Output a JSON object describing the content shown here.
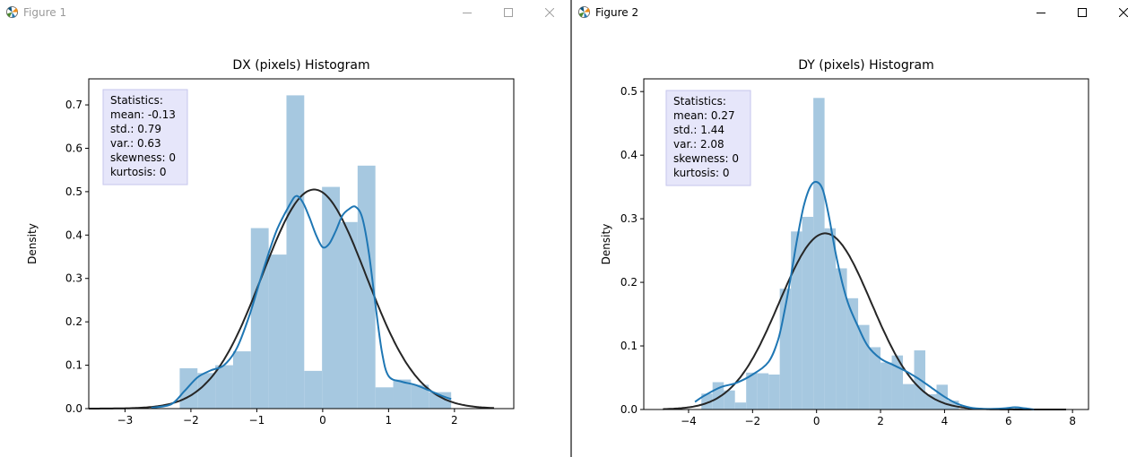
{
  "windows": [
    {
      "title": "Figure 1",
      "active": false,
      "chart_data": {
        "type": "bar",
        "title": "DX (pixels) Histogram",
        "xlabel": "",
        "ylabel": "Density",
        "xlim": [
          -3.55,
          2.9
        ],
        "ylim": [
          0,
          0.76
        ],
        "xticks": [
          -3,
          -2,
          -1,
          0,
          1,
          2
        ],
        "yticks": [
          0.0,
          0.1,
          0.2,
          0.3,
          0.4,
          0.5,
          0.6,
          0.7
        ],
        "ytick_labels": [
          "0.0",
          "0.1",
          "0.2",
          "0.3",
          "0.4",
          "0.5",
          "0.6",
          "0.7"
        ],
        "grid": false,
        "bar_color": "#a6c8e0",
        "kde_color": "#1f77b4",
        "fit_color": "#262626",
        "bins": [
          {
            "x0": -2.17,
            "x1": -1.9,
            "value": 0.093
          },
          {
            "x0": -1.9,
            "x1": -1.63,
            "value": 0.082
          },
          {
            "x0": -1.63,
            "x1": -1.36,
            "value": 0.1
          },
          {
            "x0": -1.36,
            "x1": -1.09,
            "value": 0.132
          },
          {
            "x0": -1.09,
            "x1": -0.82,
            "value": 0.416
          },
          {
            "x0": -0.82,
            "x1": -0.55,
            "value": 0.355
          },
          {
            "x0": -0.55,
            "x1": -0.28,
            "value": 0.722
          },
          {
            "x0": -0.28,
            "x1": -0.01,
            "value": 0.087
          },
          {
            "x0": -0.01,
            "x1": 0.26,
            "value": 0.511
          },
          {
            "x0": 0.26,
            "x1": 0.53,
            "value": 0.43
          },
          {
            "x0": 0.53,
            "x1": 0.8,
            "value": 0.56
          },
          {
            "x0": 0.8,
            "x1": 1.07,
            "value": 0.049
          },
          {
            "x0": 1.07,
            "x1": 1.34,
            "value": 0.067
          },
          {
            "x0": 1.34,
            "x1": 1.61,
            "value": 0.055
          },
          {
            "x0": 1.61,
            "x1": 1.95,
            "value": 0.038
          }
        ],
        "kde": {
          "x": [
            -2.6,
            -2.3,
            -2.1,
            -1.9,
            -1.7,
            -1.5,
            -1.3,
            -1.1,
            -0.9,
            -0.7,
            -0.5,
            -0.4,
            -0.3,
            -0.2,
            -0.1,
            0.0,
            0.1,
            0.2,
            0.3,
            0.4,
            0.5,
            0.6,
            0.7,
            0.8,
            0.9,
            1.0,
            1.2,
            1.4,
            1.6,
            1.8,
            1.95
          ],
          "y": [
            0.002,
            0.01,
            0.04,
            0.072,
            0.088,
            0.1,
            0.14,
            0.22,
            0.32,
            0.41,
            0.47,
            0.49,
            0.475,
            0.44,
            0.4,
            0.372,
            0.38,
            0.41,
            0.445,
            0.46,
            0.465,
            0.44,
            0.36,
            0.24,
            0.13,
            0.075,
            0.062,
            0.055,
            0.043,
            0.03,
            0.022
          ]
        },
        "fit": {
          "mean": -0.13,
          "std": 0.79,
          "xmin": -3.55,
          "xmax": 2.6
        },
        "stats_box": {
          "lines": [
            "Statistics:",
            "mean: -0.13",
            "std.: 0.79",
            "var.: 0.63",
            "skewness: 0",
            "kurtosis: 0"
          ],
          "fill": "#e6e6fa",
          "edge": "#c6c6ec"
        }
      }
    },
    {
      "title": "Figure 2",
      "active": true,
      "chart_data": {
        "type": "bar",
        "title": "DY (pixels) Histogram",
        "xlabel": "",
        "ylabel": "Density",
        "xlim": [
          -5.4,
          8.5
        ],
        "ylim": [
          0,
          0.52
        ],
        "xticks": [
          -4,
          -2,
          0,
          2,
          4,
          6,
          8
        ],
        "yticks": [
          0.0,
          0.1,
          0.2,
          0.3,
          0.4,
          0.5
        ],
        "ytick_labels": [
          "0.0",
          "0.1",
          "0.2",
          "0.3",
          "0.4",
          "0.5"
        ],
        "grid": false,
        "bar_color": "#a6c8e0",
        "kde_color": "#1f77b4",
        "fit_color": "#262626",
        "bins": [
          {
            "x0": -3.6,
            "x1": -3.25,
            "value": 0.025
          },
          {
            "x0": -3.25,
            "x1": -2.9,
            "value": 0.043
          },
          {
            "x0": -2.9,
            "x1": -2.55,
            "value": 0.03
          },
          {
            "x0": -2.55,
            "x1": -2.2,
            "value": 0.011
          },
          {
            "x0": -2.2,
            "x1": -1.85,
            "value": 0.058
          },
          {
            "x0": -1.85,
            "x1": -1.5,
            "value": 0.057
          },
          {
            "x0": -1.5,
            "x1": -1.15,
            "value": 0.055
          },
          {
            "x0": -1.15,
            "x1": -0.8,
            "value": 0.19
          },
          {
            "x0": -0.8,
            "x1": -0.45,
            "value": 0.28
          },
          {
            "x0": -0.45,
            "x1": -0.1,
            "value": 0.303
          },
          {
            "x0": -0.1,
            "x1": 0.25,
            "value": 0.49
          },
          {
            "x0": 0.25,
            "x1": 0.6,
            "value": 0.285
          },
          {
            "x0": 0.6,
            "x1": 0.95,
            "value": 0.222
          },
          {
            "x0": 0.95,
            "x1": 1.3,
            "value": 0.175
          },
          {
            "x0": 1.3,
            "x1": 1.65,
            "value": 0.133
          },
          {
            "x0": 1.65,
            "x1": 2.0,
            "value": 0.098
          },
          {
            "x0": 2.0,
            "x1": 2.35,
            "value": 0.074
          },
          {
            "x0": 2.35,
            "x1": 2.7,
            "value": 0.085
          },
          {
            "x0": 2.7,
            "x1": 3.05,
            "value": 0.04
          },
          {
            "x0": 3.05,
            "x1": 3.4,
            "value": 0.093
          },
          {
            "x0": 3.4,
            "x1": 3.75,
            "value": 0.024
          },
          {
            "x0": 3.75,
            "x1": 4.1,
            "value": 0.039
          },
          {
            "x0": 4.1,
            "x1": 4.45,
            "value": 0.014
          },
          {
            "x0": 6.2,
            "x1": 6.55,
            "value": 0.003
          }
        ],
        "kde": {
          "x": [
            -3.8,
            -3.5,
            -3.0,
            -2.5,
            -2.0,
            -1.5,
            -1.2,
            -1.0,
            -0.8,
            -0.6,
            -0.4,
            -0.2,
            0.0,
            0.2,
            0.4,
            0.6,
            0.8,
            1.0,
            1.3,
            1.6,
            2.0,
            2.4,
            2.8,
            3.2,
            3.6,
            4.0,
            4.4,
            4.8,
            5.2,
            5.8,
            6.2,
            6.5,
            6.8
          ],
          "y": [
            0.012,
            0.022,
            0.035,
            0.042,
            0.055,
            0.075,
            0.11,
            0.155,
            0.21,
            0.27,
            0.32,
            0.35,
            0.358,
            0.345,
            0.3,
            0.245,
            0.2,
            0.165,
            0.13,
            0.1,
            0.08,
            0.07,
            0.06,
            0.048,
            0.034,
            0.02,
            0.009,
            0.003,
            0.001,
            0.0015,
            0.0035,
            0.002,
            0.0
          ]
        },
        "fit": {
          "mean": 0.27,
          "std": 1.44,
          "xmin": -4.8,
          "xmax": 7.8
        },
        "stats_box": {
          "lines": [
            "Statistics:",
            "mean: 0.27",
            "std.: 1.44",
            "var.: 2.08",
            "skewness: 0",
            "kurtosis: 0"
          ],
          "fill": "#e6e6fa",
          "edge": "#c6c6ec"
        }
      }
    }
  ]
}
